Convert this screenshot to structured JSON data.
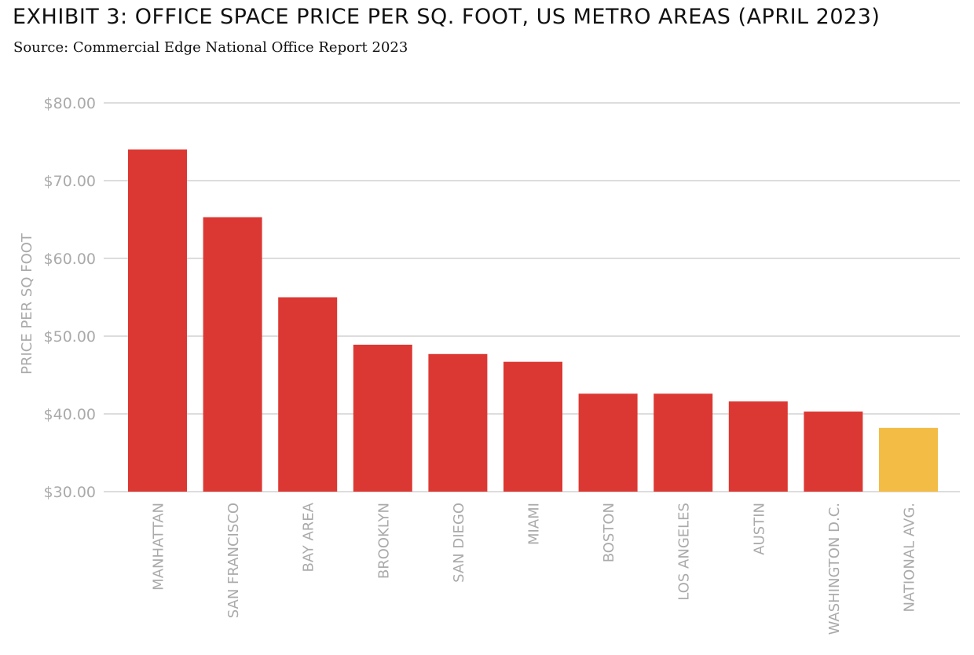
{
  "header": {
    "title": "EXHIBIT 3: OFFICE SPACE PRICE PER SQ. FOOT, US METRO AREAS (APRIL 2023)",
    "subtitle": "Source: Commercial Edge National Office Report 2023"
  },
  "chart_data": {
    "type": "bar",
    "title": "EXHIBIT 3: OFFICE SPACE PRICE PER SQ. FOOT, US METRO AREAS (APRIL 2023)",
    "subtitle": "Source: Commercial Edge National Office Report 2023",
    "xlabel": "",
    "ylabel": "PRICE PER SQ FOOT",
    "ylim": [
      30,
      80
    ],
    "yticks": [
      30,
      40,
      50,
      60,
      70,
      80
    ],
    "ytick_labels": [
      "$30.00",
      "$40.00",
      "$50.00",
      "$60.00",
      "$70.00",
      "$80.00"
    ],
    "grid": true,
    "legend": "none",
    "categories": [
      "MANHATTAN",
      "SAN FRANCISCO",
      "BAY AREA",
      "BROOKLYN",
      "SAN DIEGO",
      "MIAMI",
      "BOSTON",
      "LOS ANGELES",
      "AUSTIN",
      "WASHINGTON D.C.",
      "NATIONAL AVG."
    ],
    "values": [
      74.0,
      65.3,
      55.0,
      48.9,
      47.7,
      46.7,
      42.6,
      42.6,
      41.6,
      40.3,
      38.2
    ],
    "colors": {
      "bar": "#dc3833",
      "highlight": "#f2bc45",
      "highlight_category": "NATIONAL AVG."
    }
  }
}
